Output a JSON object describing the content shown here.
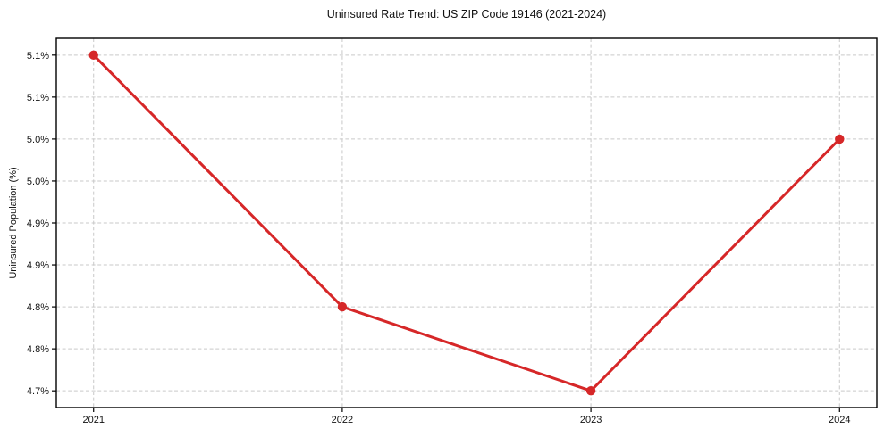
{
  "chart_data": {
    "type": "line",
    "title": "Uninsured Rate Trend: US ZIP Code 19146 (2021-2024)",
    "xlabel": "",
    "ylabel": "Uninsured Population (%)",
    "x": [
      2021,
      2022,
      2023,
      2024
    ],
    "xtick_labels": [
      "2021",
      "2022",
      "2023",
      "2024"
    ],
    "series": [
      {
        "name": "Uninsured rate",
        "values": [
          5.1,
          4.8,
          4.7,
          5.0
        ]
      }
    ],
    "yticks": [
      4.7,
      4.75,
      4.8,
      4.85,
      4.9,
      4.95,
      5.0,
      5.05,
      5.1
    ],
    "ytick_labels": [
      "4.7%",
      "4.8%",
      "4.8%",
      "4.9%",
      "4.9%",
      "5.0%",
      "5.0%",
      "5.1%",
      "5.1%"
    ],
    "xlim": [
      2020.85,
      2024.15
    ],
    "ylim": [
      4.68,
      5.12
    ],
    "grid": true,
    "legend": "none",
    "line_color": "#d62728",
    "marker": "circle",
    "grid_color": "#c9c9c9",
    "spine_color": "#000000"
  }
}
